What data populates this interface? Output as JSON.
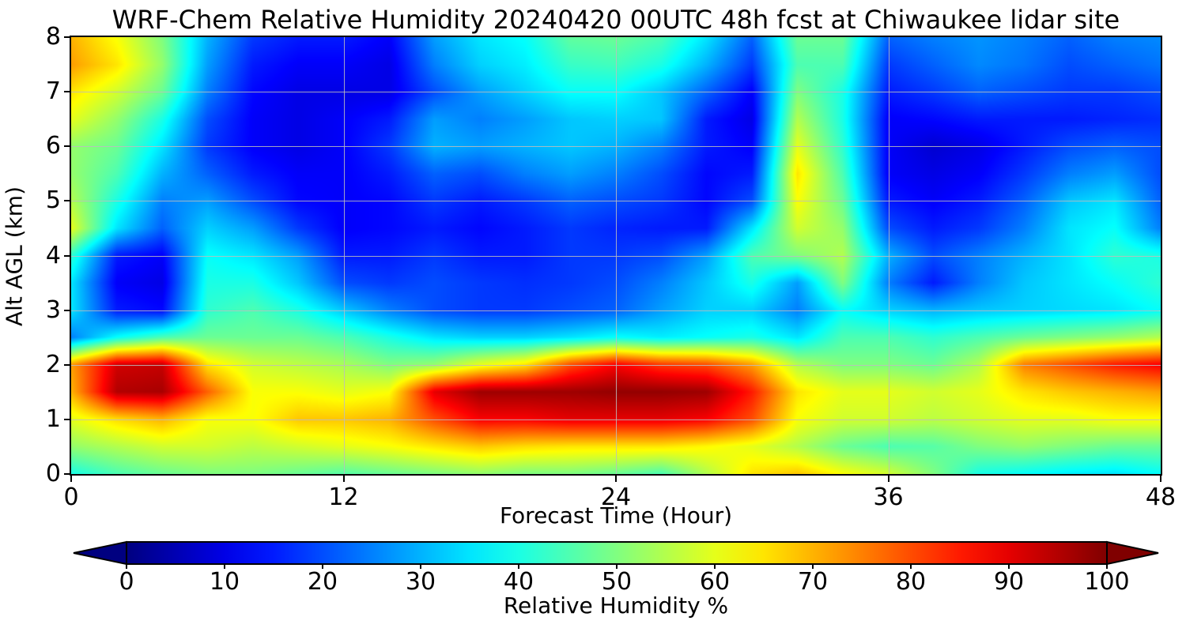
{
  "figure": {
    "background": "#ffffff",
    "text_color": "#000000"
  },
  "chart_data": {
    "type": "heatmap",
    "title": "WRF-Chem Relative Humidity 20240420 00UTC 48h fcst at Chiwaukee lidar site",
    "xlabel": "Forecast Time (Hour)",
    "ylabel": "Alt AGL (km)",
    "colorbar_label": "Relative Humidity %",
    "colormap": "jet",
    "colormap_endpoints": {
      "low": "#000080",
      "high": "#800000"
    },
    "xlim": [
      0,
      48
    ],
    "ylim": [
      0,
      8
    ],
    "clim": [
      0,
      100
    ],
    "x_ticks": [
      0,
      12,
      24,
      36,
      48
    ],
    "y_ticks": [
      0,
      1,
      2,
      3,
      4,
      5,
      6,
      7,
      8
    ],
    "colorbar_ticks": [
      0,
      10,
      20,
      30,
      40,
      50,
      60,
      70,
      80,
      90,
      100
    ],
    "grid": {
      "x_lines": [
        12,
        24,
        36
      ],
      "y_lines": [
        1,
        2,
        3,
        4,
        5,
        6,
        7
      ],
      "color": "#bdbdbd"
    },
    "x_hours": [
      0,
      2,
      4,
      6,
      8,
      10,
      12,
      14,
      16,
      18,
      20,
      22,
      24,
      26,
      28,
      30,
      32,
      34,
      36,
      38,
      40,
      42,
      44,
      46,
      48
    ],
    "alt_km": [
      0,
      0.5,
      1,
      1.5,
      2,
      2.5,
      3,
      3.5,
      4,
      4.5,
      5,
      5.5,
      6,
      6.5,
      7,
      7.5,
      8
    ],
    "rh_percent_rows_bottom_to_top": [
      [
        40,
        45,
        48,
        50,
        50,
        48,
        46,
        48,
        50,
        52,
        50,
        50,
        48,
        45,
        55,
        65,
        68,
        62,
        58,
        50,
        40,
        38,
        36,
        35,
        38
      ],
      [
        52,
        55,
        58,
        58,
        56,
        58,
        60,
        62,
        65,
        68,
        66,
        65,
        65,
        65,
        63,
        60,
        55,
        48,
        45,
        46,
        50,
        52,
        50,
        48,
        48
      ],
      [
        60,
        66,
        70,
        62,
        62,
        68,
        68,
        70,
        80,
        88,
        88,
        90,
        90,
        90,
        88,
        80,
        62,
        58,
        58,
        56,
        58,
        60,
        60,
        62,
        62
      ],
      [
        70,
        95,
        96,
        78,
        62,
        62,
        60,
        62,
        90,
        97,
        97,
        97,
        98,
        98,
        97,
        85,
        65,
        60,
        60,
        58,
        60,
        65,
        68,
        70,
        72
      ],
      [
        72,
        92,
        93,
        65,
        58,
        56,
        54,
        50,
        52,
        60,
        65,
        80,
        88,
        82,
        80,
        72,
        55,
        50,
        50,
        48,
        55,
        75,
        80,
        85,
        88
      ],
      [
        25,
        38,
        45,
        48,
        48,
        48,
        45,
        40,
        35,
        33,
        33,
        35,
        38,
        36,
        38,
        40,
        35,
        45,
        45,
        42,
        45,
        48,
        50,
        52,
        55
      ],
      [
        35,
        15,
        13,
        42,
        45,
        40,
        32,
        25,
        20,
        18,
        18,
        20,
        22,
        28,
        33,
        33,
        25,
        38,
        33,
        30,
        32,
        33,
        34,
        35,
        38
      ],
      [
        35,
        12,
        10,
        40,
        40,
        32,
        20,
        18,
        20,
        18,
        17,
        18,
        20,
        25,
        32,
        40,
        28,
        50,
        25,
        15,
        25,
        32,
        35,
        38,
        42
      ],
      [
        42,
        15,
        12,
        38,
        35,
        28,
        15,
        15,
        18,
        15,
        15,
        18,
        18,
        20,
        28,
        45,
        50,
        55,
        30,
        20,
        25,
        30,
        35,
        42,
        40
      ],
      [
        60,
        35,
        22,
        33,
        28,
        18,
        12,
        13,
        15,
        13,
        15,
        18,
        16,
        15,
        15,
        35,
        58,
        52,
        20,
        15,
        18,
        25,
        35,
        38,
        25
      ],
      [
        55,
        40,
        25,
        28,
        20,
        13,
        12,
        13,
        18,
        15,
        18,
        22,
        20,
        18,
        13,
        20,
        62,
        48,
        15,
        12,
        15,
        22,
        32,
        35,
        22
      ],
      [
        52,
        45,
        30,
        22,
        15,
        12,
        12,
        15,
        22,
        20,
        25,
        28,
        25,
        20,
        13,
        15,
        65,
        45,
        12,
        10,
        12,
        18,
        25,
        28,
        20
      ],
      [
        52,
        48,
        35,
        18,
        12,
        10,
        12,
        18,
        30,
        28,
        30,
        32,
        30,
        25,
        15,
        12,
        60,
        42,
        12,
        8,
        10,
        15,
        20,
        22,
        20
      ],
      [
        60,
        52,
        40,
        20,
        12,
        10,
        12,
        15,
        28,
        25,
        28,
        32,
        33,
        32,
        15,
        10,
        55,
        40,
        12,
        13,
        15,
        15,
        15,
        16,
        17
      ],
      [
        65,
        58,
        48,
        25,
        13,
        10,
        10,
        10,
        20,
        28,
        33,
        38,
        38,
        32,
        22,
        12,
        50,
        40,
        15,
        18,
        22,
        20,
        18,
        18,
        20
      ],
      [
        72,
        65,
        52,
        28,
        15,
        12,
        12,
        10,
        25,
        33,
        36,
        43,
        44,
        40,
        30,
        18,
        45,
        45,
        18,
        22,
        26,
        24,
        20,
        22,
        24
      ],
      [
        70,
        62,
        50,
        30,
        18,
        15,
        15,
        12,
        28,
        35,
        38,
        47,
        48,
        45,
        35,
        22,
        48,
        48,
        22,
        25,
        27,
        25,
        22,
        25,
        26
      ]
    ]
  }
}
